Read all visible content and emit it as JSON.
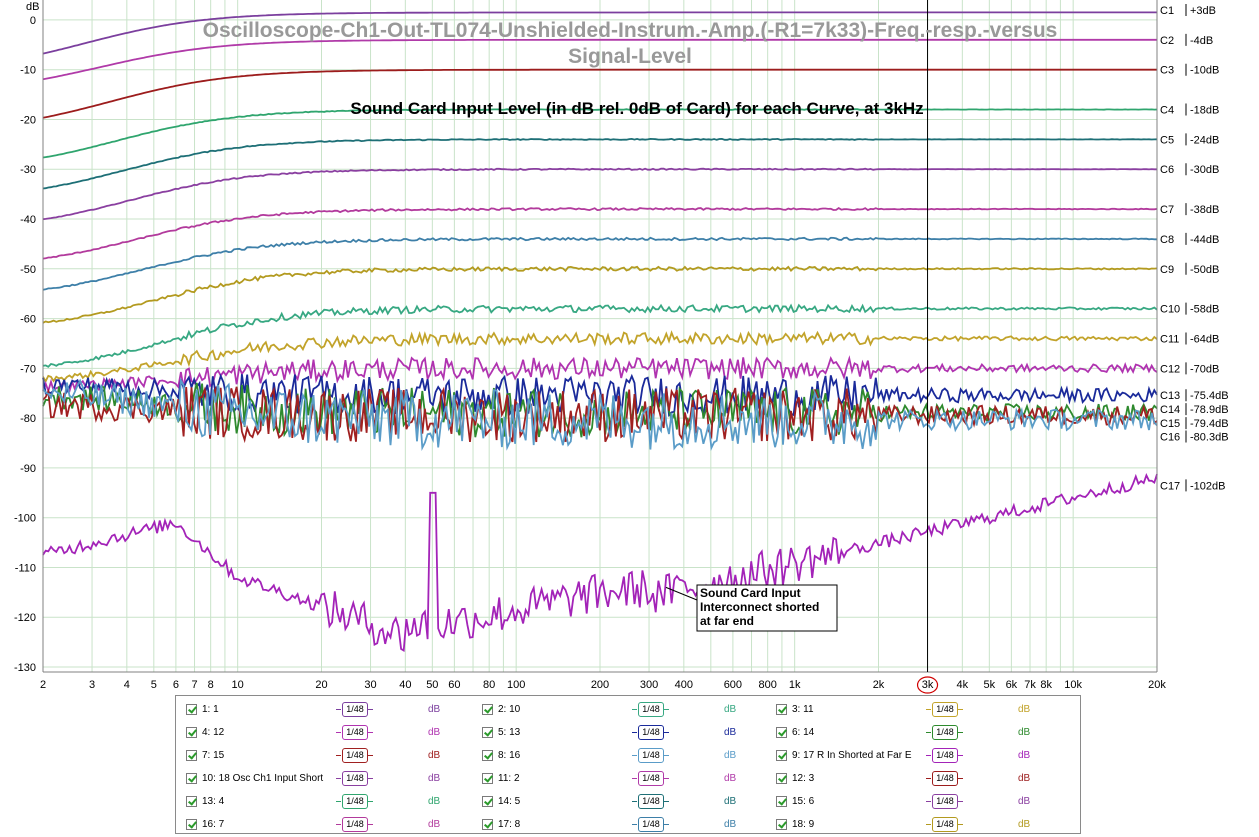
{
  "chart_data": {
    "type": "line",
    "title": "Oscilloscope-Ch1-Out-TL074-Unshielded-Instrum.-Amp.(-R1=7k33)-Freq.-resp.-versus Signal-Level",
    "subtitle": "Sound Card Input Level (in dB rel. 0dB of Card) for each Curve, at 3kHz",
    "ylabel": "dB",
    "xlabel": "",
    "x_scale": "log",
    "xlim": [
      2,
      20000
    ],
    "ylim": [
      -131,
      4
    ],
    "y_ticks": [
      0,
      -10,
      -20,
      -30,
      -40,
      -50,
      -60,
      -70,
      -80,
      -90,
      -100,
      -110,
      -120,
      -130
    ],
    "y_tick_labels": [
      "0",
      "-10",
      "-20",
      "-30",
      "-40",
      "-50",
      "-60",
      "-70",
      "-80",
      "-90",
      "-100",
      "-110",
      "-120",
      "-130"
    ],
    "x_ticks": [
      2,
      3,
      4,
      5,
      6,
      7,
      8,
      10,
      20,
      30,
      40,
      50,
      60,
      80,
      100,
      200,
      300,
      400,
      600,
      800,
      1000,
      2000,
      3000,
      4000,
      5000,
      6000,
      7000,
      8000,
      10000,
      20000
    ],
    "x_tick_labels": [
      "2",
      "3",
      "4",
      "5",
      "6",
      "7",
      "8",
      "10",
      "20",
      "30",
      "40",
      "50",
      "60",
      "80",
      "100",
      "200",
      "300",
      "400",
      "600",
      "800",
      "1k",
      "2k",
      "3k",
      "4k",
      "5k",
      "6k",
      "7k",
      "8k",
      "10k",
      "20k"
    ],
    "grid": true,
    "cursor_x": 3000,
    "cursor_label": "3k",
    "annotation": [
      "Sound Card Input",
      "Interconnect shorted",
      "at far end"
    ],
    "annotation_point": [
      345,
      -114
    ],
    "series": [
      {
        "name": "C1",
        "level": "+3dB",
        "y_end": 1.5,
        "y_start": -11,
        "knee": 2.8,
        "noise": 0,
        "color": "#7b3f9e",
        "label_y": 2
      },
      {
        "name": "C2",
        "level": "-4dB",
        "y_end": -4,
        "y_start": -15,
        "knee": 3.2,
        "noise": 0,
        "color": "#b03aa8",
        "label_y": -4
      },
      {
        "name": "C3",
        "level": "-10dB",
        "y_end": -10,
        "y_start": -22.8,
        "knee": 3.5,
        "noise": 0,
        "color": "#9c1c1c",
        "label_y": -10
      },
      {
        "name": "C4",
        "level": "-18dB",
        "y_end": -18,
        "y_start": -30.5,
        "knee": 3.7,
        "noise": 0.08,
        "color": "#2fa56e",
        "label_y": -18
      },
      {
        "name": "C5",
        "level": "-24dB",
        "y_end": -24,
        "y_start": -36.5,
        "knee": 3.9,
        "noise": 0.1,
        "color": "#1d6f76",
        "label_y": -24
      },
      {
        "name": "C6",
        "level": "-30dB",
        "y_end": -30,
        "y_start": -42.5,
        "knee": 4.1,
        "noise": 0.12,
        "color": "#8a3fa0",
        "label_y": -30
      },
      {
        "name": "C7",
        "level": "-38dB",
        "y_end": -38,
        "y_start": -50,
        "knee": 4.4,
        "noise": 0.2,
        "color": "#b23a9c",
        "label_y": -38
      },
      {
        "name": "C8",
        "level": "-44dB",
        "y_end": -44,
        "y_start": -56,
        "knee": 4.7,
        "noise": 0.25,
        "color": "#3d7fa8",
        "label_y": -44
      },
      {
        "name": "C9",
        "level": "-50dB",
        "y_end": -50,
        "y_start": -62.5,
        "knee": 5.1,
        "noise": 0.4,
        "color": "#b39a1f",
        "label_y": -50
      },
      {
        "name": "C10",
        "level": "-58dB",
        "y_end": -58,
        "y_start": -71,
        "knee": 5.6,
        "noise": 0.7,
        "color": "#37a882",
        "label_y": -58
      },
      {
        "name": "C11",
        "level": "-64dB",
        "y_end": -64,
        "y_start": -73,
        "knee": 6.0,
        "noise": 1.2,
        "color": "#c2a32a",
        "label_y": -64
      },
      {
        "name": "C12",
        "level": "-70dB",
        "y_end": -70,
        "y_start": -74,
        "knee": 6.5,
        "noise": 2.2,
        "color": "#b033b0",
        "label_y": -70
      },
      {
        "name": "C13",
        "level": "-75.4dB",
        "y_end": -75.4,
        "y_start": -73,
        "knee": 5,
        "noise": 4,
        "color": "#1a2a9a",
        "label_y": -75.4
      },
      {
        "name": "C14",
        "level": "-78.9dB",
        "y_end": -78.9,
        "y_start": -75,
        "knee": 5,
        "noise": 5,
        "color": "#2e8a2e",
        "label_y": -78.2
      },
      {
        "name": "C15",
        "level": "-79.4dB",
        "y_end": -79.4,
        "y_start": -77,
        "knee": 5,
        "noise": 5.5,
        "color": "#a02020",
        "label_y": -81
      },
      {
        "name": "C16",
        "level": "-80.3dB",
        "y_end": -80.3,
        "y_start": -74,
        "knee": 5,
        "noise": 6,
        "color": "#5a9cc8",
        "label_y": -83.7
      },
      {
        "name": "C17",
        "level": "-102dB",
        "y_end": -92,
        "y_start": -107.5,
        "knee": 0,
        "noise": 0,
        "color": "#a323b8",
        "label_y": -93.5
      }
    ]
  },
  "legend": {
    "rows": [
      [
        {
          "label": "1: 1",
          "unit": "dB",
          "color": "#7b3f9e"
        },
        {
          "label": "2: 10",
          "unit": "dB",
          "color": "#37a882"
        },
        {
          "label": "3: 11",
          "unit": "dB",
          "color": "#c2a32a"
        }
      ],
      [
        {
          "label": "4: 12",
          "unit": "dB",
          "color": "#b033b0"
        },
        {
          "label": "5: 13",
          "unit": "dB",
          "color": "#1a2a9a"
        },
        {
          "label": "6: 14",
          "unit": "dB",
          "color": "#2e8a2e"
        }
      ],
      [
        {
          "label": "7: 15",
          "unit": "dB",
          "color": "#a02020"
        },
        {
          "label": "8: 16",
          "unit": "dB",
          "color": "#5a9cc8"
        },
        {
          "label": "9: 17 R In Shorted at Far E",
          "unit": "dB",
          "color": "#a323b8"
        }
      ],
      [
        {
          "label": "10: 18 Osc Ch1 Input Short",
          "unit": "dB",
          "color": "#8a3fa0"
        },
        {
          "label": "11: 2",
          "unit": "dB",
          "color": "#b03aa8"
        },
        {
          "label": "12: 3",
          "unit": "dB",
          "color": "#9c1c1c"
        }
      ],
      [
        {
          "label": "13: 4",
          "unit": "dB",
          "color": "#2fa56e"
        },
        {
          "label": "14: 5",
          "unit": "dB",
          "color": "#1d6f76"
        },
        {
          "label": "15: 6",
          "unit": "dB",
          "color": "#8a3fa0"
        }
      ],
      [
        {
          "label": "16: 7",
          "unit": "dB",
          "color": "#b23a9c"
        },
        {
          "label": "17: 8",
          "unit": "dB",
          "color": "#3d7fa8"
        },
        {
          "label": "18: 9",
          "unit": "dB",
          "color": "#b39a1f"
        }
      ]
    ],
    "button_text": "1/48"
  }
}
